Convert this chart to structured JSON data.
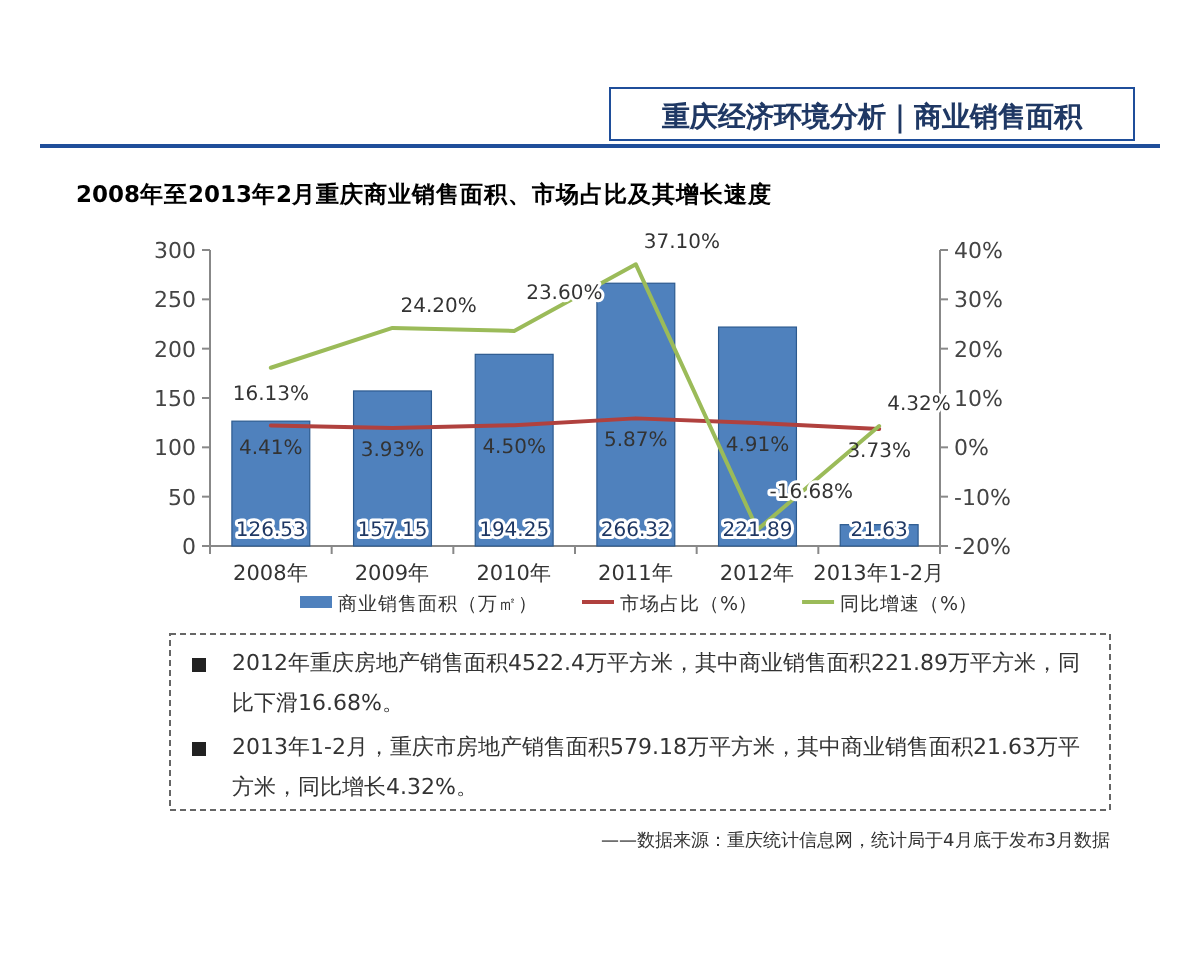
{
  "chart_data": {
    "type": "bar",
    "title": "重庆经济环境分析｜商业销售面积",
    "subtitle": "2008年至2013年2月重庆商业销售面积、市场占比及其增长速度",
    "categories": [
      "2008年",
      "2009年",
      "2010年",
      "2011年",
      "2012年",
      "2013年1-2月"
    ],
    "series": [
      {
        "name": "商业销售面积（万㎡）",
        "color": "#4f81bd",
        "values": [
          126.53,
          157.15,
          194.25,
          266.32,
          221.89,
          21.63
        ],
        "value_labels": [
          "126.53",
          "157.15",
          "194.25",
          "266.32",
          "221.89",
          "21.63"
        ]
      },
      {
        "name": "市场占比（%）",
        "type": "line",
        "axis": "y2",
        "color": "#b0413e",
        "values": [
          4.41,
          3.93,
          4.5,
          5.87,
          4.91,
          3.73
        ],
        "value_labels": [
          "4.41%",
          "3.93%",
          "4.50%",
          "5.87%",
          "4.91%",
          "3.73%"
        ]
      },
      {
        "name": "同比增速（%）",
        "type": "line",
        "axis": "y2",
        "color": "#9bbb59",
        "values": [
          16.13,
          24.2,
          23.6,
          37.1,
          -16.68,
          4.32
        ],
        "value_labels": [
          "16.13%",
          "24.20%",
          "23.60%",
          "37.10%",
          "-16.68%",
          "4.32%"
        ]
      }
    ],
    "ylim": [
      0,
      300
    ],
    "yticks": [
      0,
      50,
      100,
      150,
      200,
      250,
      300
    ],
    "y2lim": [
      -20,
      40
    ],
    "y2ticks": [
      {
        "value": -20,
        "label": "-20%"
      },
      {
        "value": -10,
        "label": "-10%"
      },
      {
        "value": 0,
        "label": "0%"
      },
      {
        "value": 10,
        "label": "10%"
      },
      {
        "value": 20,
        "label": "20%"
      },
      {
        "value": 30,
        "label": "30%"
      },
      {
        "value": 40,
        "label": "40%"
      }
    ],
    "legend": "bottom",
    "annotations": [
      "2012年重庆房地产销售面积4522.4万平方米，其中商业销售面积221.89万平方米，同比下滑16.68%。",
      "2013年1-2月，重庆市房地产销售面积579.18万平方米，其中商业销售面积21.63万平方米，同比增长4.32%。",
      "——数据来源：重庆统计信息网，统计局于4月底于发布3月数据"
    ]
  }
}
